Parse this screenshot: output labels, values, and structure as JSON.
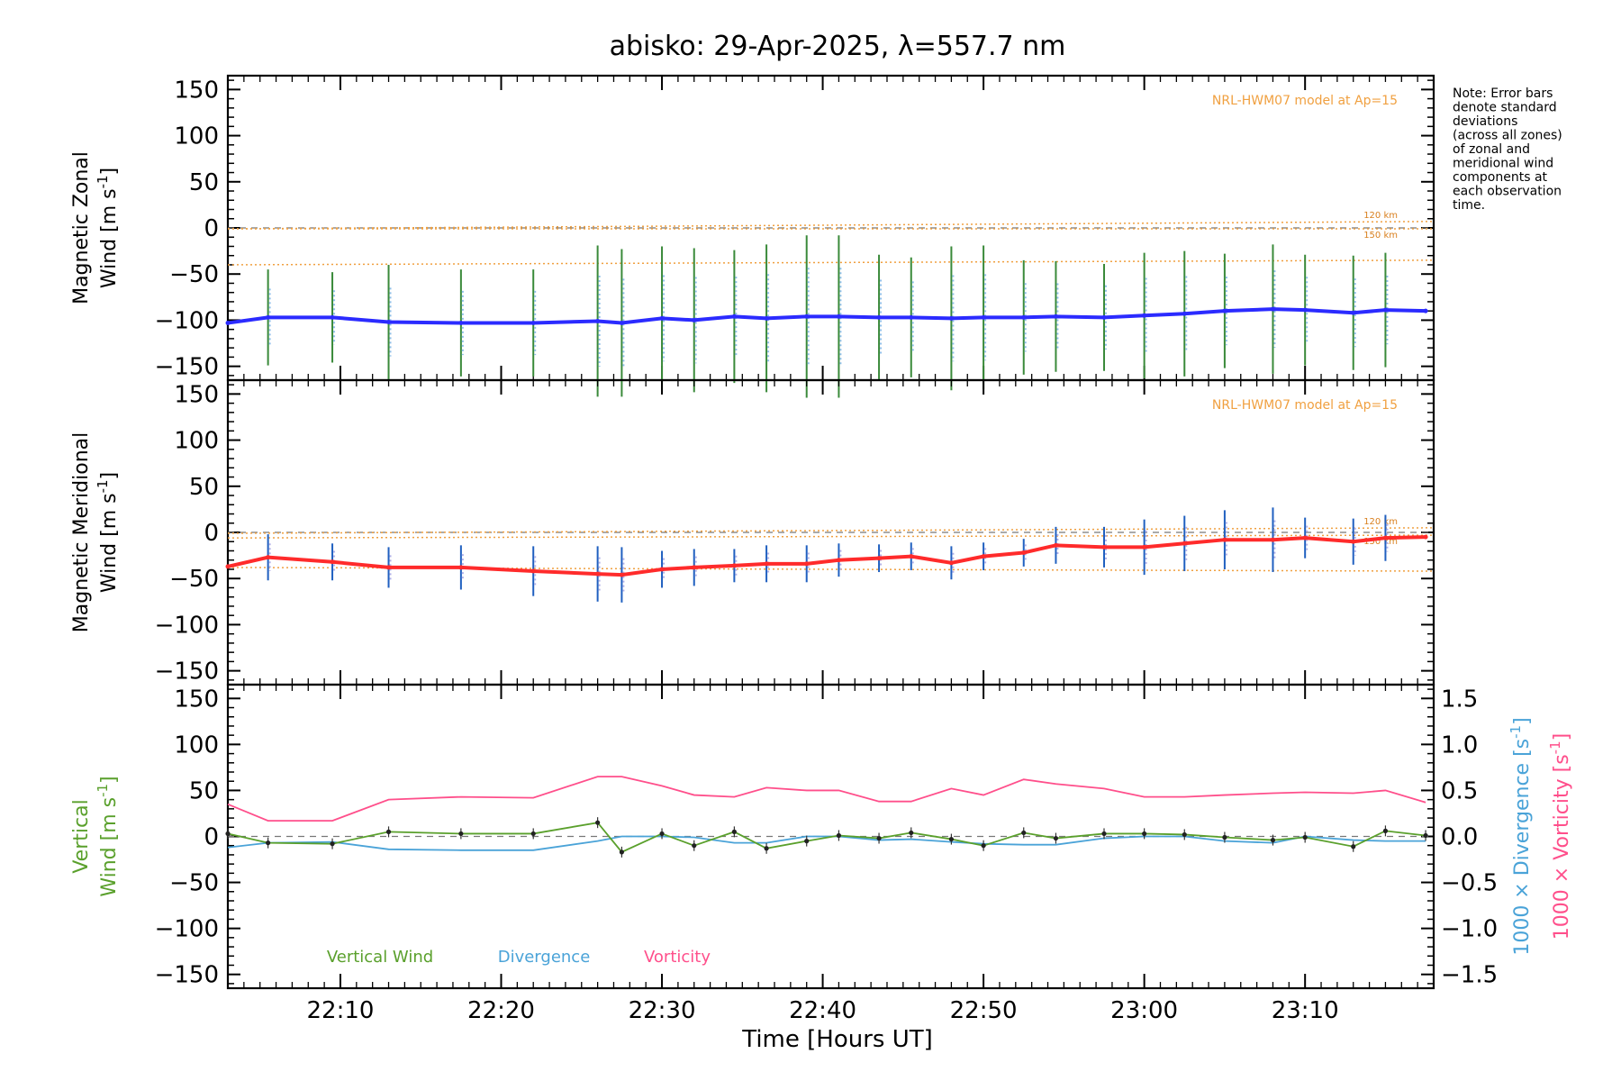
{
  "title": "abisko: 29-Apr-2025, λ=557.7 nm",
  "note": [
    "Note: Error bars",
    "denote standard",
    "deviations",
    "(across all zones)",
    "of zonal and",
    "meridional wind",
    "components at",
    "each observation",
    "time."
  ],
  "colors": {
    "zonal": "#2b2bff",
    "meridional": "#ff2b2b",
    "vertical": "#5aa02c",
    "divergence": "#4aa3d8",
    "vorticity": "#ff4f8b",
    "model": "#f0a040",
    "errorbar_green": "#3a8a3a",
    "errorbar_blue": "#2060c0"
  },
  "chart_data": [
    {
      "type": "line",
      "panel": "zonal",
      "ylabel_line1": "Magnetic Zonal",
      "ylabel_line2": "Wind [m s",
      "ylabel_sup": "-1",
      "ylabel_close": "]",
      "ylim": [
        -165,
        165
      ],
      "yticks": [
        150,
        100,
        50,
        0,
        -50,
        -100,
        -150
      ],
      "model_label": "NRL-HWM07 model at Ap=15",
      "alt_labels": [
        "120 km",
        "150 km"
      ],
      "model_lines": {
        "upper_y0": -1,
        "upper_y1": 7,
        "dash_y": 0,
        "mid_y0": -1,
        "mid_y1": -1,
        "lower_y0": -40,
        "lower_y1": -35
      },
      "series": [
        {
          "name": "Zonal",
          "x": [
            "22:03",
            "22:05.5",
            "22:09.5",
            "22:13",
            "22:17.5",
            "22:22",
            "22:26",
            "22:27.5",
            "22:30",
            "22:32",
            "22:34.5",
            "22:36.5",
            "22:39",
            "22:41",
            "22:43.5",
            "22:45.5",
            "22:48",
            "22:50",
            "22:52.5",
            "22:54.5",
            "22:57.5",
            "23:00",
            "23:02.5",
            "23:05",
            "23:08",
            "23:10",
            "23:13",
            "23:15",
            "23:17.5"
          ],
          "y": [
            -103,
            -97,
            -97,
            -102,
            -103,
            -103,
            -101,
            -103,
            -98,
            -100,
            -96,
            -98,
            -96,
            -96,
            -97,
            -97,
            -98,
            -97,
            -97,
            -96,
            -97,
            -95,
            -93,
            -90,
            -88,
            -89,
            -92,
            -89,
            -90
          ],
          "err": [
            0,
            52,
            49,
            62,
            58,
            58,
            82,
            80,
            78,
            78,
            72,
            80,
            88,
            88,
            68,
            65,
            78,
            78,
            62,
            60,
            58,
            68,
            68,
            62,
            70,
            60,
            62,
            62,
            0
          ]
        }
      ]
    },
    {
      "type": "line",
      "panel": "meridional",
      "ylabel_line1": "Magnetic Meridional",
      "ylabel_line2": "Wind [m s",
      "ylabel_sup": "-1",
      "ylabel_close": "]",
      "ylim": [
        -165,
        165
      ],
      "yticks": [
        150,
        100,
        50,
        0,
        -50,
        -100,
        -150
      ],
      "model_label": "NRL-HWM07 model at Ap=15",
      "alt_labels": [
        "120 km",
        "150 km"
      ],
      "model_lines": {
        "upper_y0": -1,
        "upper_y1": 5,
        "dash_y": 0,
        "mid_y0": -6,
        "mid_y1": -3,
        "lower_y0": -38,
        "lower_y1": -42
      },
      "series": [
        {
          "name": "Meridional",
          "x": [
            "22:03",
            "22:05.5",
            "22:09.5",
            "22:13",
            "22:17.5",
            "22:22",
            "22:26",
            "22:27.5",
            "22:30",
            "22:32",
            "22:34.5",
            "22:36.5",
            "22:39",
            "22:41",
            "22:43.5",
            "22:45.5",
            "22:48",
            "22:50",
            "22:52.5",
            "22:54.5",
            "22:57.5",
            "23:00",
            "23:02.5",
            "23:05",
            "23:08",
            "23:10",
            "23:13",
            "23:15",
            "23:17.5"
          ],
          "y": [
            -37,
            -27,
            -32,
            -38,
            -38,
            -42,
            -45,
            -46,
            -40,
            -38,
            -36,
            -34,
            -34,
            -30,
            -28,
            -26,
            -33,
            -26,
            -22,
            -14,
            -16,
            -16,
            -12,
            -8,
            -8,
            -6,
            -10,
            -6,
            -5
          ],
          "err": [
            0,
            25,
            20,
            22,
            24,
            27,
            30,
            30,
            20,
            20,
            18,
            20,
            20,
            18,
            15,
            15,
            18,
            15,
            15,
            20,
            22,
            30,
            30,
            32,
            35,
            22,
            25,
            25,
            0
          ]
        }
      ]
    },
    {
      "type": "line",
      "panel": "vertical",
      "ylabel_line1": "Vertical",
      "ylabel_line2": "Wind [m s",
      "ylabel_sup": "-1",
      "ylabel_close": "]",
      "ylim": [
        -165,
        165
      ],
      "yticks": [
        150,
        100,
        50,
        0,
        -50,
        -100,
        -150
      ],
      "y2lim": [
        -1.65,
        1.65
      ],
      "y2ticks": [
        1.5,
        1.0,
        0.5,
        0.0,
        -0.5,
        -1.0,
        -1.5
      ],
      "y2label_div": "1000 × Divergence [s",
      "y2label_vor": "1000 × Vorticity [s",
      "y2label_sup": "-1",
      "y2label_close": "]",
      "legend": [
        "Vertical Wind",
        "Divergence",
        "Vorticity"
      ],
      "series": [
        {
          "name": "Vertical Wind",
          "x": [
            "22:03",
            "22:05.5",
            "22:09.5",
            "22:13",
            "22:17.5",
            "22:22",
            "22:26",
            "22:27.5",
            "22:30",
            "22:32",
            "22:34.5",
            "22:36.5",
            "22:39",
            "22:41",
            "22:43.5",
            "22:45.5",
            "22:48",
            "22:50",
            "22:52.5",
            "22:54.5",
            "22:57.5",
            "23:00",
            "23:02.5",
            "23:05",
            "23:08",
            "23:10",
            "23:13",
            "23:15",
            "23:17.5"
          ],
          "y": [
            3,
            -7,
            -8,
            5,
            3,
            3,
            15,
            -17,
            3,
            -10,
            5,
            -13,
            -5,
            1,
            -2,
            4,
            -3,
            -10,
            4,
            -2,
            3,
            3,
            2,
            -1,
            -4,
            -1,
            -11,
            6,
            1
          ]
        },
        {
          "name": "Divergence",
          "x": [
            "22:03",
            "22:05.5",
            "22:09.5",
            "22:13",
            "22:17.5",
            "22:22",
            "22:26",
            "22:27.5",
            "22:30",
            "22:32",
            "22:34.5",
            "22:36.5",
            "22:39",
            "22:41",
            "22:43.5",
            "22:45.5",
            "22:48",
            "22:50",
            "22:52.5",
            "22:54.5",
            "22:57.5",
            "23:00",
            "23:02.5",
            "23:05",
            "23:08",
            "23:10",
            "23:13",
            "23:15",
            "23:17.5"
          ],
          "y": [
            -0.12,
            -0.07,
            -0.06,
            -0.14,
            -0.15,
            -0.15,
            -0.05,
            0.0,
            0.0,
            -0.01,
            -0.07,
            -0.07,
            0.0,
            0.0,
            -0.04,
            -0.03,
            -0.06,
            -0.08,
            -0.09,
            -0.09,
            -0.02,
            0.0,
            0.0,
            -0.05,
            -0.07,
            0.0,
            -0.04,
            -0.05,
            -0.05
          ]
        },
        {
          "name": "Vorticity",
          "x": [
            "22:03",
            "22:05.5",
            "22:09.5",
            "22:13",
            "22:17.5",
            "22:22",
            "22:26",
            "22:27.5",
            "22:30",
            "22:32",
            "22:34.5",
            "22:36.5",
            "22:39",
            "22:41",
            "22:43.5",
            "22:45.5",
            "22:48",
            "22:50",
            "22:52.5",
            "22:54.5",
            "22:57.5",
            "23:00",
            "23:02.5",
            "23:05",
            "23:08",
            "23:10",
            "23:13",
            "23:15",
            "23:17.5"
          ],
          "y": [
            0.35,
            0.17,
            0.17,
            0.4,
            0.43,
            0.42,
            0.65,
            0.65,
            0.55,
            0.45,
            0.43,
            0.53,
            0.5,
            0.5,
            0.38,
            0.38,
            0.52,
            0.45,
            0.62,
            0.57,
            0.52,
            0.43,
            0.43,
            0.45,
            0.47,
            0.48,
            0.47,
            0.5,
            0.37
          ]
        }
      ]
    }
  ],
  "xaxis": {
    "label": "Time [Hours UT]",
    "range": [
      "22:03",
      "23:18"
    ],
    "ticks": [
      "22:10",
      "22:20",
      "22:30",
      "22:40",
      "22:50",
      "23:00",
      "23:10"
    ]
  }
}
